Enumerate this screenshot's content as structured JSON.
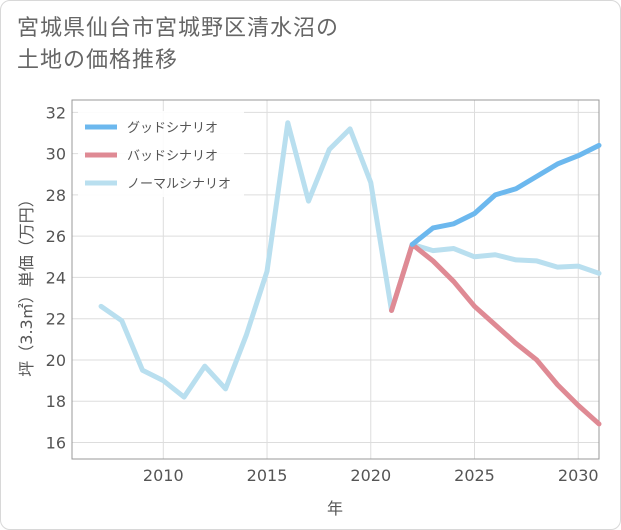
{
  "title": {
    "line1": "宮城県仙台市宮城野区清水沼の",
    "line2": "土地の価格推移"
  },
  "chart_data": {
    "type": "line",
    "title": "宮城県仙台市宮城野区清水沼の土地の価格推移",
    "xlabel": "年",
    "ylabel": "坪（3.3㎡）単価（万円）",
    "xlim": [
      2005.6,
      2031
    ],
    "ylim": [
      15.2,
      32.6
    ],
    "xticks": [
      2010,
      2015,
      2020,
      2025,
      2030
    ],
    "yticks": [
      16,
      18,
      20,
      22,
      24,
      26,
      28,
      30,
      32
    ],
    "legend_position": "top-left",
    "series": [
      {
        "name": "グッドシナリオ",
        "color": "#6cb8ee",
        "x": [
          2022,
          2023,
          2024,
          2025,
          2026,
          2027,
          2028,
          2029,
          2030,
          2031
        ],
        "y": [
          25.6,
          26.4,
          26.6,
          27.1,
          28.0,
          28.3,
          28.9,
          29.5,
          29.9,
          30.4
        ]
      },
      {
        "name": "バッドシナリオ",
        "color": "#df8a94",
        "x": [
          2021,
          2022,
          2023,
          2024,
          2025,
          2026,
          2027,
          2028,
          2029,
          2030,
          2031
        ],
        "y": [
          22.4,
          25.6,
          24.8,
          23.8,
          22.6,
          21.7,
          20.8,
          20.0,
          18.8,
          17.8,
          16.9
        ]
      },
      {
        "name": "ノーマルシナリオ",
        "color": "#b9dfef",
        "x": [
          2007,
          2008,
          2009,
          2010,
          2011,
          2012,
          2013,
          2014,
          2015,
          2016,
          2017,
          2018,
          2019,
          2020,
          2021,
          2022,
          2023,
          2024,
          2025,
          2026,
          2027,
          2028,
          2029,
          2030,
          2031
        ],
        "y": [
          22.6,
          21.9,
          19.5,
          19.0,
          18.2,
          19.7,
          18.6,
          21.2,
          24.3,
          31.5,
          27.7,
          30.2,
          31.2,
          28.6,
          22.4,
          25.6,
          25.3,
          25.4,
          25.0,
          25.1,
          24.85,
          24.8,
          24.5,
          24.55,
          24.2
        ]
      }
    ]
  }
}
